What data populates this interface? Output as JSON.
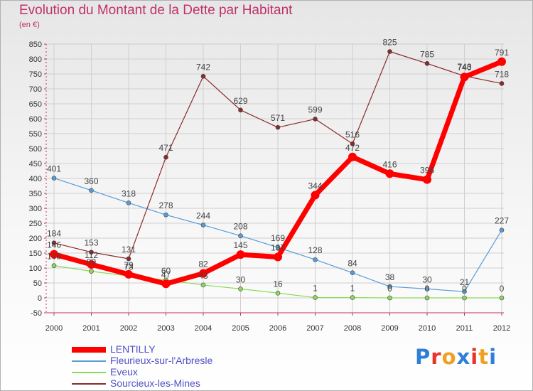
{
  "title": "Evolution du Montant de la Dette par Habitant",
  "subtitle": "(en €)",
  "logo": {
    "text": "Proxiti",
    "colors": [
      "#2f7fd8",
      "#e8342a",
      "#f0a020",
      "#2f7fd8",
      "#e8342a",
      "#f0a020",
      "#2f7fd8"
    ]
  },
  "chart_data": {
    "type": "line",
    "title": "Evolution du Montant de la Dette par Habitant",
    "subtitle": "(en €)",
    "x": [
      2000,
      2001,
      2002,
      2003,
      2004,
      2005,
      2006,
      2007,
      2008,
      2009,
      2010,
      2011,
      2012
    ],
    "ylim": [
      -50,
      850
    ],
    "yticks": [
      -50,
      0,
      50,
      100,
      150,
      200,
      250,
      300,
      350,
      400,
      450,
      500,
      550,
      600,
      650,
      700,
      750,
      800,
      850
    ],
    "grid": true,
    "legend_position": "bottom-left",
    "series": [
      {
        "name": "LENTILLY",
        "color": "#ff0000",
        "values": [
          146,
          112,
          79,
          47,
          82,
          145,
          137,
          344,
          472,
          416,
          396,
          740,
          791
        ]
      },
      {
        "name": "Fleurieux-sur-l'Arbresle",
        "color": "#5b9bd5",
        "values": [
          401,
          360,
          318,
          278,
          244,
          208,
          169,
          128,
          84,
          38,
          30,
          21,
          227
        ]
      },
      {
        "name": "Eveux",
        "color": "#8ed85a",
        "values": [
          108,
          89,
          73,
          60,
          43,
          30,
          16,
          1,
          1,
          0,
          0,
          0,
          0
        ]
      },
      {
        "name": "Sourcieux-les-Mines",
        "color": "#8b2a2a",
        "values": [
          184,
          153,
          131,
          471,
          742,
          629,
          571,
          599,
          516,
          825,
          785,
          743,
          718
        ]
      }
    ]
  }
}
